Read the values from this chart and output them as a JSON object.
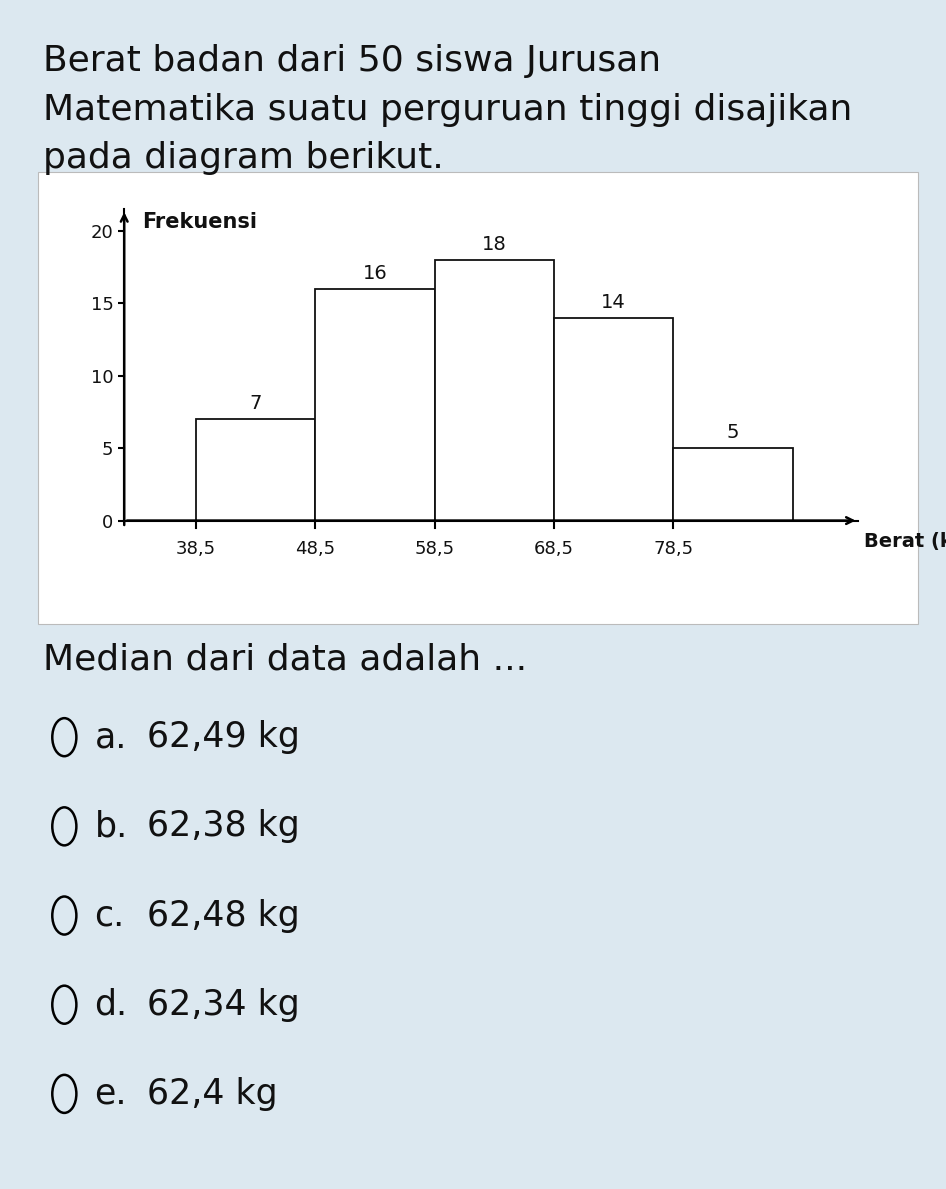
{
  "title_line1": "Berat badan dari 50 siswa Jurusan",
  "title_line2": "Matematika suatu perguruan tinggi disajikan",
  "title_line3": "pada diagram berikut.",
  "ylabel": "Frekuensi",
  "xlabel": "Berat (kg)",
  "x_edges": [
    38.5,
    48.5,
    58.5,
    68.5,
    78.5,
    88.5
  ],
  "frequencies": [
    7,
    16,
    18,
    14,
    5
  ],
  "bar_labels": [
    "7",
    "16",
    "18",
    "14",
    "5"
  ],
  "x_tick_labels": [
    "38,5",
    "48,5",
    "58,5",
    "68,5",
    "78,5"
  ],
  "yticks": [
    0,
    5,
    10,
    15,
    20
  ],
  "ylim": [
    0,
    22
  ],
  "background_color": "#dce8f0",
  "chart_bg_color": "#ffffff",
  "chart_border_color": "#cccccc",
  "bar_facecolor": "#ffffff",
  "bar_edgecolor": "#111111",
  "text_color": "#111111",
  "question": "Median dari data adalah ...",
  "options": [
    {
      "label": "a.",
      "text": "62,49 kg"
    },
    {
      "label": "b.",
      "text": "62,38 kg"
    },
    {
      "label": "c.",
      "text": "62,48 kg"
    },
    {
      "label": "d.",
      "text": "62,34 kg"
    },
    {
      "label": "e.",
      "text": "62,4 kg"
    }
  ],
  "title_fontsize": 26,
  "axis_label_fontsize": 14,
  "tick_fontsize": 13,
  "bar_label_fontsize": 14,
  "question_fontsize": 26,
  "option_fontsize": 25
}
